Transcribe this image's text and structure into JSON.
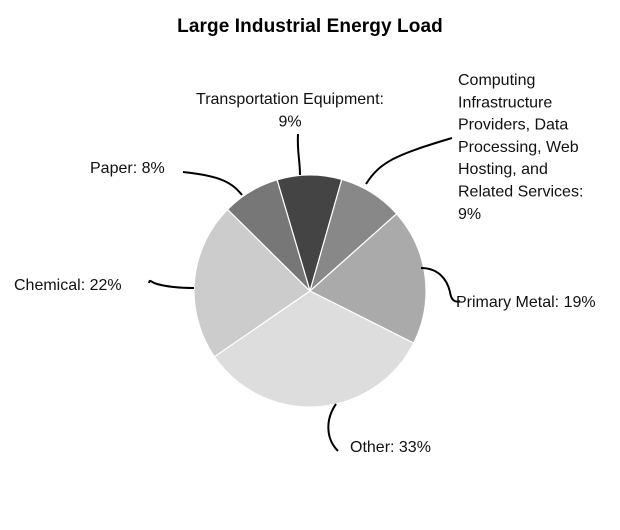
{
  "chart_data": {
    "type": "pie",
    "title": "Large Industrial Energy Load",
    "slices": [
      {
        "label": "Transportation Equipment",
        "value": 9,
        "label_text": "Transportation Equipment: 9%",
        "color": "#444444"
      },
      {
        "label": "Computing Infrastructure Providers, Data Processing, Web Hosting, and Related Services",
        "value": 9,
        "label_text": "Computing Infrastructure Providers, Data Processing, Web Hosting, and Related Services: 9%",
        "color": "#888888"
      },
      {
        "label": "Primary Metal",
        "value": 19,
        "label_text": "Primary Metal: 19%",
        "color": "#aaaaaa"
      },
      {
        "label": "Other",
        "value": 33,
        "label_text": "Other: 33%",
        "color": "#dddddd"
      },
      {
        "label": "Chemical",
        "value": 22,
        "label_text": "Chemical: 22%",
        "color": "#cccccc"
      },
      {
        "label": "Paper",
        "value": 8,
        "label_text": "Paper: 8%",
        "color": "#777777"
      }
    ],
    "legend": "none",
    "grid": false
  }
}
